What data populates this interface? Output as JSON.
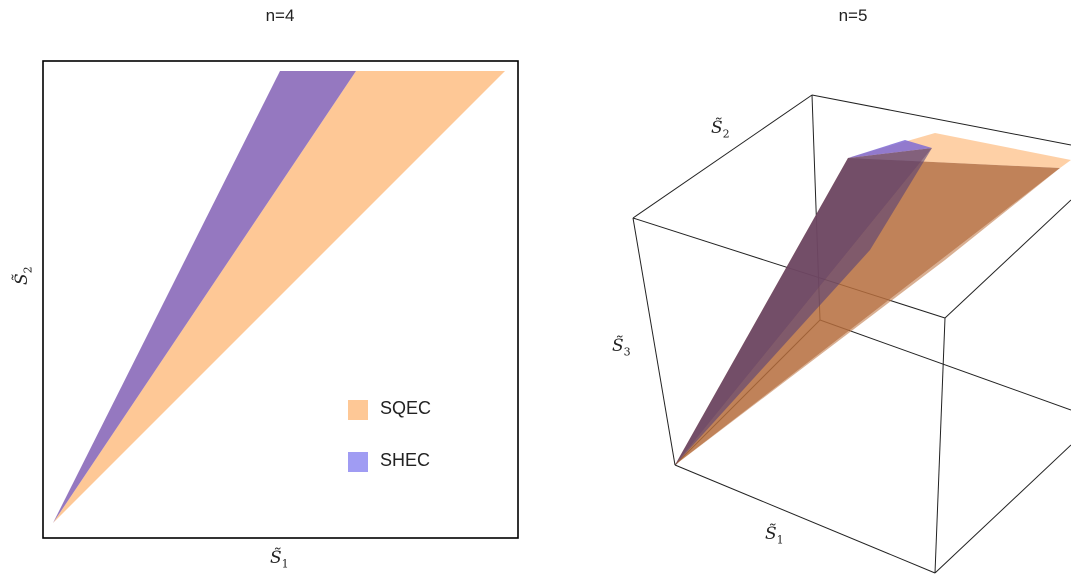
{
  "panels": [
    {
      "title": "n=4",
      "xlabel_base": "S̃",
      "xlabel_sub": "1",
      "ylabel_base": "S̃",
      "ylabel_sub": "2"
    },
    {
      "title": "n=5",
      "axis_labels": [
        {
          "base": "S̃",
          "sub": "2"
        },
        {
          "base": "S̃",
          "sub": "3"
        },
        {
          "base": "S̃",
          "sub": "1"
        }
      ]
    }
  ],
  "legend": [
    {
      "label": "SQEC",
      "color": "#fec896"
    },
    {
      "label": "SHEC",
      "color": "#a09cf3"
    }
  ],
  "colors": {
    "sqec_fill": "#fec896",
    "shec_fill": "#9578c0",
    "frame": "#000000",
    "box_line": "#222222",
    "sqec_3d": "#b56c3c",
    "shec_3d": "#5a3c6e"
  }
}
